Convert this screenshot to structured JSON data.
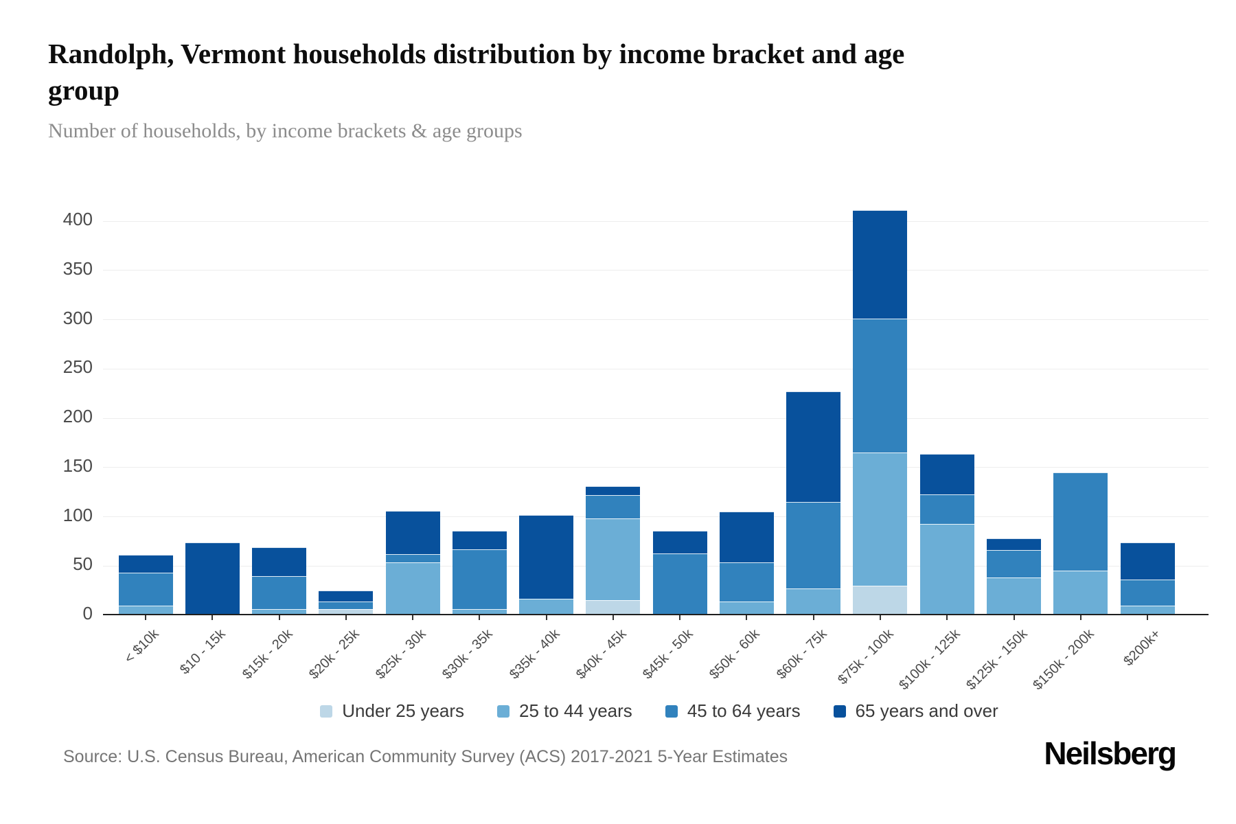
{
  "header": {
    "title": "Randolph, Vermont households distribution by income bracket and age group",
    "subtitle": "Number of households, by income brackets & age groups"
  },
  "chart_data": {
    "type": "bar",
    "stacked": true,
    "title": "Randolph, Vermont households distribution by income bracket and age group",
    "subtitle": "Number of households, by income brackets & age groups",
    "categories": [
      "< $10k",
      "$10 - 15k",
      "$15k - 20k",
      "$20k - 25k",
      "$25k - 30k",
      "$30k - 35k",
      "$35k - 40k",
      "$40k - 45k",
      "$45k - 50k",
      "$50k - 60k",
      "$60k - 75k",
      "$75k - 100k",
      "$100k - 125k",
      "$125k - 150k",
      "$150k - 200k",
      "$200k+"
    ],
    "series": [
      {
        "name": "Under 25 years",
        "color": "#bdd7e7",
        "values": [
          0,
          0,
          0,
          6,
          0,
          0,
          0,
          15,
          0,
          0,
          0,
          30,
          0,
          0,
          0,
          0
        ]
      },
      {
        "name": "25 to 44 years",
        "color": "#6baed6",
        "values": [
          10,
          0,
          6,
          0,
          54,
          6,
          17,
          83,
          0,
          14,
          27,
          135,
          93,
          38,
          45,
          10
        ]
      },
      {
        "name": "45 to 64 years",
        "color": "#3182bd",
        "values": [
          33,
          0,
          34,
          8,
          8,
          61,
          0,
          24,
          63,
          40,
          88,
          136,
          30,
          28,
          100,
          26
        ]
      },
      {
        "name": "65 years and over",
        "color": "#08519c",
        "values": [
          18,
          74,
          29,
          11,
          44,
          19,
          85,
          9,
          23,
          51,
          112,
          110,
          41,
          12,
          0,
          38
        ]
      }
    ],
    "totals": [
      61,
      74,
      69,
      25,
      106,
      86,
      102,
      131,
      86,
      105,
      227,
      411,
      164,
      78,
      145,
      74
    ],
    "ylim": [
      0,
      400
    ],
    "yticks": [
      0,
      50,
      100,
      150,
      200,
      250,
      300,
      350,
      400
    ],
    "grid": true,
    "legend_position": "bottom",
    "xlabel": "",
    "ylabel": ""
  },
  "footer": {
    "source": "Source: U.S. Census Bureau, American Community Survey (ACS) 2017-2021 5-Year Estimates",
    "brand": "Neilsberg"
  }
}
